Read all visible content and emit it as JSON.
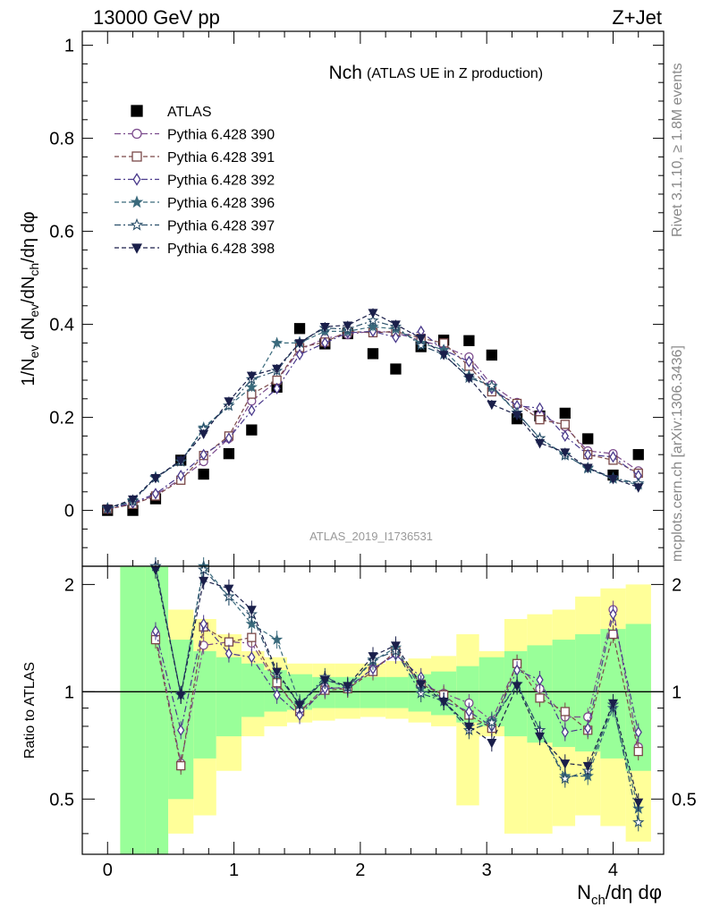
{
  "header": {
    "left": "13000 GeV pp",
    "right": "Z+Jet"
  },
  "side": {
    "rivet": "Rivet 3.1.10, ≥ 1.8M events",
    "site": "mcplots.cern.ch [arXiv:1306.3436]"
  },
  "chart_data": [
    {
      "type": "line",
      "panel": "main",
      "title_main": "Nch",
      "title_sub": "(ATLAS UE in Z production)",
      "watermark": "ATLAS_2019_I1736531",
      "ylabel": "1/N_ev dN_ev/dN_ch/dη dφ",
      "xlabel": "N_ch/dη dφ",
      "xlim": [
        -0.2,
        4.4
      ],
      "ylim": [
        -0.12,
        1.03
      ],
      "yticks": [
        "0",
        "0.2",
        "0.4",
        "0.6",
        "0.8",
        "1"
      ],
      "xticks": [
        "0",
        "1",
        "2",
        "3",
        "4"
      ],
      "legend_position": "top-left",
      "x": [
        0,
        0.2,
        0.38,
        0.58,
        0.76,
        0.96,
        1.14,
        1.34,
        1.52,
        1.72,
        1.9,
        2.1,
        2.28,
        2.48,
        2.66,
        2.86,
        3.04,
        3.24,
        3.42,
        3.62,
        3.8,
        4.0,
        4.2
      ],
      "series": [
        {
          "name": "ATLAS",
          "color": "#000000",
          "marker": "square-filled",
          "values": [
            0.0,
            0.0,
            0.025,
            0.108,
            0.078,
            0.122,
            0.173,
            0.265,
            0.391,
            0.358,
            0.38,
            0.337,
            0.304,
            0.352,
            0.366,
            0.365,
            0.334,
            0.197,
            0.203,
            0.209,
            0.154,
            0.076,
            0.12
          ]
        },
        {
          "name": "Pythia 6.428 390",
          "color": "#7b4a8c",
          "marker": "circle-open",
          "values": [
            0.003,
            0.014,
            0.033,
            0.068,
            0.105,
            0.155,
            0.235,
            0.278,
            0.345,
            0.37,
            0.378,
            0.386,
            0.382,
            0.365,
            0.352,
            0.33,
            0.27,
            0.232,
            0.205,
            0.18,
            0.128,
            0.122,
            0.085
          ]
        },
        {
          "name": "Pythia 6.428 391",
          "color": "#7a4848",
          "marker": "square-open",
          "values": [
            0.003,
            0.013,
            0.031,
            0.065,
            0.118,
            0.16,
            0.25,
            0.28,
            0.35,
            0.362,
            0.385,
            0.382,
            0.385,
            0.37,
            0.36,
            0.31,
            0.255,
            0.23,
            0.195,
            0.185,
            0.12,
            0.108,
            0.08
          ]
        },
        {
          "name": "Pythia 6.428 392",
          "color": "#4a3a8c",
          "marker": "diamond-open",
          "values": [
            0.004,
            0.016,
            0.036,
            0.075,
            0.12,
            0.155,
            0.215,
            0.262,
            0.335,
            0.36,
            0.382,
            0.385,
            0.372,
            0.385,
            0.345,
            0.32,
            0.262,
            0.225,
            0.22,
            0.16,
            0.12,
            0.115,
            0.075
          ]
        },
        {
          "name": "Pythia 6.428 396",
          "color": "#3a6a7c",
          "marker": "star-filled",
          "values": [
            0.005,
            0.022,
            0.072,
            0.105,
            0.178,
            0.225,
            0.265,
            0.36,
            0.36,
            0.385,
            0.385,
            0.395,
            0.39,
            0.36,
            0.345,
            0.29,
            0.265,
            0.21,
            0.155,
            0.12,
            0.09,
            0.068,
            0.055
          ]
        },
        {
          "name": "Pythia 6.428 397",
          "color": "#2a4f6a",
          "marker": "star-open",
          "values": [
            0.004,
            0.02,
            0.07,
            0.105,
            0.175,
            0.225,
            0.282,
            0.3,
            0.362,
            0.392,
            0.39,
            0.408,
            0.395,
            0.355,
            0.335,
            0.285,
            0.268,
            0.21,
            0.155,
            0.118,
            0.092,
            0.07,
            0.058
          ]
        },
        {
          "name": "Pythia 6.428 398",
          "color": "#1a1f4a",
          "marker": "triangle-down-filled",
          "values": [
            0.004,
            0.024,
            0.07,
            0.108,
            0.165,
            0.235,
            0.29,
            0.305,
            0.36,
            0.395,
            0.398,
            0.425,
            0.4,
            0.37,
            0.335,
            0.285,
            0.228,
            0.205,
            0.145,
            0.125,
            0.092,
            0.068,
            0.05
          ]
        }
      ]
    },
    {
      "type": "line",
      "panel": "ratio",
      "ylabel": "Ratio to ATLAS",
      "ylim": [
        0.35,
        2.25
      ],
      "yticks": [
        "0.5",
        "1",
        "2"
      ],
      "reference_line": 1,
      "x": [
        0.38,
        0.58,
        0.76,
        0.96,
        1.14,
        1.34,
        1.52,
        1.72,
        1.9,
        2.1,
        2.28,
        2.48,
        2.66,
        2.86,
        3.04,
        3.24,
        3.42,
        3.62,
        3.8,
        4.0,
        4.2
      ],
      "series": [
        {
          "name": "Pythia 6.428 390",
          "values": [
            1.45,
            0.63,
            1.35,
            1.38,
            1.37,
            1.05,
            0.88,
            1.03,
            1.02,
            1.16,
            1.28,
            1.05,
            0.99,
            0.93,
            0.83,
            1.2,
            1.02,
            0.85,
            0.85,
            1.7,
            0.7
          ]
        },
        {
          "name": "Pythia 6.428 391",
          "values": [
            1.4,
            0.62,
            1.52,
            1.38,
            1.42,
            1.06,
            0.88,
            1.01,
            1.02,
            1.14,
            1.3,
            1.05,
            0.98,
            0.86,
            0.79,
            1.2,
            0.96,
            0.88,
            0.78,
            1.45,
            0.68
          ]
        },
        {
          "name": "Pythia 6.428 392",
          "values": [
            1.48,
            0.78,
            1.55,
            1.28,
            1.25,
            0.98,
            0.86,
            1.02,
            1.03,
            1.16,
            1.27,
            1.1,
            0.94,
            0.88,
            0.8,
            1.15,
            1.08,
            0.77,
            0.79,
            1.65,
            0.77
          ]
        },
        {
          "name": "Pythia 6.428 396",
          "values": [
            2.25,
            0.98,
            2.25,
            1.85,
            1.55,
            1.4,
            0.93,
            1.08,
            1.03,
            1.22,
            1.33,
            1.02,
            0.94,
            0.8,
            0.83,
            1.05,
            0.78,
            0.58,
            0.58,
            0.9,
            0.47
          ]
        },
        {
          "name": "Pythia 6.428 397",
          "values": [
            2.25,
            0.98,
            2.2,
            1.85,
            1.65,
            1.12,
            0.92,
            1.1,
            1.03,
            1.23,
            1.3,
            0.99,
            0.94,
            0.78,
            0.82,
            1.05,
            0.78,
            0.57,
            0.6,
            0.92,
            0.43
          ]
        },
        {
          "name": "Pythia 6.428 398",
          "values": [
            2.2,
            0.98,
            2.05,
            1.95,
            1.7,
            1.14,
            0.92,
            1.08,
            1.04,
            1.26,
            1.35,
            1.05,
            0.94,
            0.8,
            0.72,
            1.04,
            0.75,
            0.63,
            0.62,
            0.93,
            0.49
          ]
        }
      ],
      "bands": {
        "x_edges": [
          0.1,
          0.3,
          0.48,
          0.68,
          0.86,
          1.06,
          1.24,
          1.42,
          1.62,
          1.8,
          2.0,
          2.2,
          2.38,
          2.56,
          2.76,
          2.94,
          3.14,
          3.32,
          3.52,
          3.7,
          3.9,
          4.1,
          4.3
        ],
        "green_lo": [
          0.35,
          0.35,
          0.5,
          0.65,
          0.75,
          0.85,
          0.88,
          0.89,
          0.9,
          0.9,
          0.9,
          0.9,
          0.88,
          0.86,
          0.82,
          0.8,
          0.75,
          0.72,
          0.7,
          0.68,
          0.65,
          0.6
        ],
        "green_hi": [
          2.25,
          2.25,
          1.4,
          1.3,
          1.25,
          1.2,
          1.15,
          1.12,
          1.1,
          1.1,
          1.1,
          1.1,
          1.12,
          1.14,
          1.18,
          1.25,
          1.3,
          1.35,
          1.4,
          1.45,
          1.5,
          1.55
        ],
        "yellow_lo": [
          0.35,
          0.35,
          0.4,
          0.45,
          0.6,
          0.75,
          0.8,
          0.82,
          0.83,
          0.84,
          0.85,
          0.84,
          0.82,
          0.8,
          0.48,
          0.75,
          0.4,
          0.4,
          0.42,
          0.45,
          0.42,
          0.38
        ],
        "yellow_hi": [
          2.25,
          2.25,
          1.7,
          1.6,
          1.45,
          1.3,
          1.25,
          1.2,
          1.2,
          1.2,
          1.2,
          1.22,
          1.24,
          1.26,
          1.45,
          1.3,
          1.6,
          1.65,
          1.7,
          1.85,
          1.95,
          2.0
        ]
      }
    }
  ]
}
